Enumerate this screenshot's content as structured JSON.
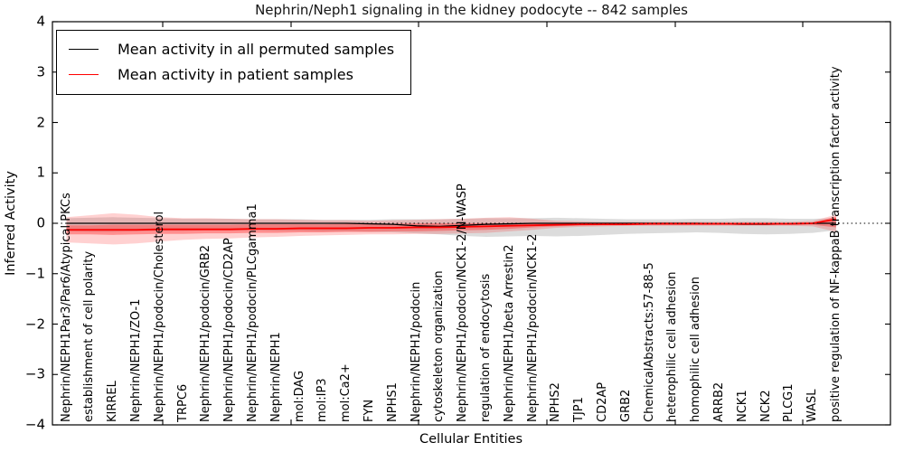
{
  "chart_data": {
    "type": "line",
    "title": "Nephrin/Neph1 signaling in the kidney podocyte -- 842 samples",
    "xlabel": "Cellular Entities",
    "ylabel": "Inferred Activity",
    "ylim": [
      -4,
      4
    ],
    "yticks": [
      4,
      3,
      2,
      1,
      0,
      -1,
      -2,
      -3,
      -4
    ],
    "grid": false,
    "zero_line": true,
    "legend_position": "upper left",
    "sample_count": "842",
    "categories": [
      "Nephrin/NEPH1Par3/Par6/Atypical PKCs",
      "establishment of cell polarity",
      "KIRREL",
      "Nephrin/NEPH1/ZO-1",
      "Nephrin/NEPH1/podocin/Cholesterol",
      "TRPC6",
      "Nephrin/NEPH1/podocin/GRB2",
      "Nephrin/NEPH1/podocin/CD2AP",
      "Nephrin/NEPH1/podocin/PLCgamma1",
      "Nephrin/NEPH1",
      "mol:DAG",
      "mol:IP3",
      "mol:Ca2+",
      "FYN",
      "NPHS1",
      "Nephrin/NEPH1/podocin",
      "cytoskeleton organization",
      "Nephrin/NEPH1/podocin/NCK1-2/N-WASP",
      "regulation of endocytosis",
      "Nephrin/NEPH1/beta Arrestin2",
      "Nephrin/NEPH1/podocin/NCK1-2",
      "NPHS2",
      "TJP1",
      "CD2AP",
      "GRB2",
      "ChemicalAbstracts:57-88-5",
      "heterophilic cell adhesion",
      "homophilic cell adhesion",
      "ARRB2",
      "NCK1",
      "NCK2",
      "PLCG1",
      "WASL",
      "positive regulation of NF-kappaB transcription factor activity"
    ],
    "series": [
      {
        "name": "Mean activity in all permuted samples",
        "color": "#000000",
        "width": 1.3,
        "values": [
          0,
          0,
          0,
          0,
          0,
          0,
          0,
          0,
          0,
          0,
          0,
          0,
          0,
          -0.01,
          -0.02,
          -0.05,
          -0.06,
          -0.04,
          -0.02,
          -0.01,
          0,
          0,
          0,
          0,
          0,
          0,
          0,
          0,
          -0.01,
          -0.02,
          -0.02,
          -0.01,
          0,
          0
        ]
      },
      {
        "name": "Mean activity in patient samples",
        "color": "#ff0000",
        "width": 1.8,
        "values": [
          -0.13,
          -0.13,
          -0.13,
          -0.13,
          -0.12,
          -0.12,
          -0.12,
          -0.12,
          -0.11,
          -0.11,
          -0.1,
          -0.1,
          -0.1,
          -0.09,
          -0.09,
          -0.08,
          -0.08,
          -0.07,
          -0.06,
          -0.05,
          -0.04,
          -0.03,
          -0.02,
          -0.02,
          -0.02,
          -0.01,
          -0.01,
          -0.01,
          -0.01,
          -0.01,
          -0.01,
          -0.01,
          0.0,
          0.08
        ]
      }
    ],
    "bands": [
      {
        "name": "permuted-samples-range-band",
        "color": "rgba(130,130,130,0.28)",
        "upper": [
          0.1,
          0.11,
          0.12,
          0.11,
          0.1,
          0.09,
          0.09,
          0.09,
          0.08,
          0.08,
          0.08,
          0.07,
          0.07,
          0.07,
          0.08,
          0.08,
          0.08,
          0.09,
          0.1,
          0.1,
          0.1,
          0.11,
          0.1,
          0.09,
          0.08,
          0.08,
          0.08,
          0.09,
          0.09,
          0.1,
          0.1,
          0.09,
          0.09,
          0.1
        ],
        "lower": [
          -0.16,
          -0.17,
          -0.17,
          -0.16,
          -0.15,
          -0.15,
          -0.14,
          -0.14,
          -0.14,
          -0.15,
          -0.15,
          -0.16,
          -0.16,
          -0.17,
          -0.18,
          -0.2,
          -0.22,
          -0.25,
          -0.27,
          -0.26,
          -0.25,
          -0.26,
          -0.25,
          -0.23,
          -0.21,
          -0.2,
          -0.19,
          -0.18,
          -0.19,
          -0.21,
          -0.22,
          -0.21,
          -0.19,
          -0.14
        ]
      },
      {
        "name": "patient-samples-outer-band",
        "color": "rgba(255,45,45,0.22)",
        "upper": [
          0.12,
          0.16,
          0.2,
          0.17,
          0.12,
          0.1,
          0.1,
          0.09,
          0.08,
          0.08,
          0.07,
          0.06,
          0.06,
          0.05,
          0.06,
          0.07,
          0.08,
          0.09,
          0.11,
          0.12,
          0.09,
          0.05,
          0.04,
          0.03,
          0.03,
          0.03,
          0.03,
          0.03,
          0.03,
          0.03,
          0.03,
          0.03,
          0.05,
          0.17
        ],
        "lower": [
          -0.38,
          -0.4,
          -0.42,
          -0.4,
          -0.36,
          -0.33,
          -0.31,
          -0.3,
          -0.28,
          -0.27,
          -0.25,
          -0.24,
          -0.23,
          -0.22,
          -0.22,
          -0.21,
          -0.21,
          -0.2,
          -0.19,
          -0.16,
          -0.13,
          -0.09,
          -0.07,
          -0.06,
          -0.05,
          -0.05,
          -0.05,
          -0.05,
          -0.05,
          -0.05,
          -0.05,
          -0.05,
          -0.06,
          -0.17
        ]
      },
      {
        "name": "patient-samples-inner-band",
        "color": "rgba(255,45,45,0.40)",
        "upper": [
          -0.04,
          -0.04,
          -0.03,
          -0.03,
          -0.03,
          -0.03,
          -0.03,
          -0.03,
          -0.02,
          -0.02,
          -0.02,
          -0.02,
          -0.01,
          -0.01,
          -0.01,
          0.0,
          0.0,
          0.0,
          0.0,
          0.0,
          -0.01,
          0.0,
          0.0,
          0.0,
          0.0,
          0.0,
          0.0,
          0.0,
          0.0,
          0.0,
          0.0,
          0.0,
          0.01,
          0.14
        ],
        "lower": [
          -0.22,
          -0.22,
          -0.23,
          -0.22,
          -0.21,
          -0.21,
          -0.2,
          -0.2,
          -0.19,
          -0.19,
          -0.18,
          -0.18,
          -0.17,
          -0.17,
          -0.16,
          -0.16,
          -0.15,
          -0.14,
          -0.13,
          -0.11,
          -0.08,
          -0.06,
          -0.05,
          -0.04,
          -0.04,
          -0.03,
          -0.03,
          -0.03,
          -0.03,
          -0.03,
          -0.03,
          -0.03,
          -0.03,
          -0.08
        ]
      }
    ]
  },
  "legend": {
    "items": [
      {
        "label": "Mean activity in all permuted samples",
        "color": "#000000"
      },
      {
        "label": "Mean activity in patient samples",
        "color": "#ff0000"
      }
    ]
  },
  "colors": {
    "axis": "#000000",
    "background": "#ffffff",
    "patient_line": "#ff0000",
    "permuted_line": "#000000"
  }
}
